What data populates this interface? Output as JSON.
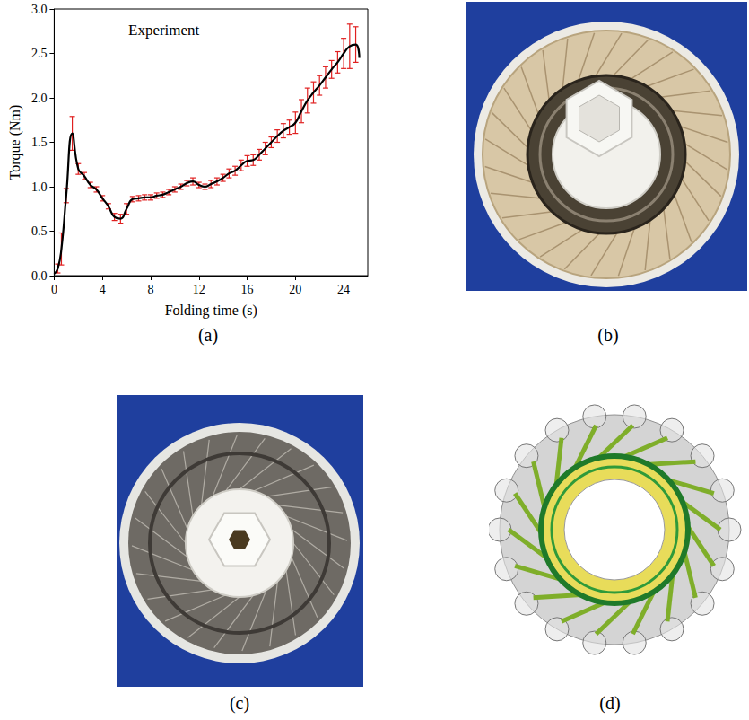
{
  "chart_data": {
    "type": "line",
    "annotations": [
      "Experiment"
    ],
    "x_label": "Folding time (s)",
    "y_label": "Torque (Nm)",
    "x": [
      0,
      0.3,
      0.6,
      1.0,
      1.5,
      2.0,
      2.5,
      3.0,
      3.5,
      4.0,
      4.5,
      5.0,
      5.5,
      6.0,
      6.5,
      7.0,
      7.5,
      8.0,
      8.5,
      9.0,
      9.5,
      10.0,
      10.5,
      11.0,
      11.5,
      12.0,
      12.5,
      13.0,
      13.5,
      14.0,
      14.5,
      15.0,
      15.5,
      16.0,
      16.5,
      17.0,
      17.5,
      18.0,
      18.5,
      19.0,
      19.5,
      20.0,
      20.5,
      21.0,
      21.5,
      22.0,
      22.5,
      23.0,
      23.5,
      24.0,
      24.5,
      25.0,
      25.3
    ],
    "values": [
      0.02,
      0.08,
      0.3,
      0.9,
      1.6,
      1.2,
      1.12,
      1.02,
      0.97,
      0.87,
      0.78,
      0.66,
      0.64,
      0.75,
      0.86,
      0.87,
      0.88,
      0.88,
      0.9,
      0.91,
      0.94,
      0.97,
      1.0,
      1.04,
      1.06,
      1.02,
      1.0,
      1.03,
      1.06,
      1.1,
      1.15,
      1.18,
      1.24,
      1.29,
      1.3,
      1.36,
      1.43,
      1.5,
      1.57,
      1.63,
      1.67,
      1.72,
      1.85,
      1.97,
      2.06,
      2.14,
      2.23,
      2.32,
      2.4,
      2.5,
      2.58,
      2.6,
      2.45
    ],
    "errors": [
      null,
      0.05,
      0.18,
      0.08,
      0.19,
      0.06,
      0.04,
      0.03,
      0.03,
      0.03,
      0.03,
      0.04,
      0.05,
      0.06,
      0.03,
      0.03,
      0.03,
      0.03,
      0.03,
      0.03,
      0.03,
      0.03,
      0.03,
      0.03,
      0.04,
      0.03,
      0.03,
      0.04,
      0.04,
      0.04,
      0.05,
      0.05,
      0.06,
      0.06,
      0.06,
      0.06,
      0.07,
      0.06,
      0.07,
      0.08,
      0.08,
      0.12,
      0.13,
      0.14,
      0.12,
      0.11,
      0.12,
      0.1,
      0.12,
      0.17,
      0.25,
      0.2,
      null
    ],
    "color": "#000000",
    "xlim": [
      0,
      26
    ],
    "xticks": [
      0,
      4,
      8,
      12,
      16,
      20,
      24
    ],
    "ylim": [
      0,
      3.0
    ],
    "yticks": [
      {
        "value": 0,
        "label": "0.0"
      },
      0.5,
      {
        "value": 1,
        "label": "1.0"
      },
      1.5,
      {
        "value": 2,
        "label": "2.0"
      },
      2.5,
      {
        "value": 3,
        "label": "3.0"
      }
    ],
    "grid": false
  },
  "panels": [
    "(a)",
    "(b)",
    "(c)",
    "(d)"
  ]
}
